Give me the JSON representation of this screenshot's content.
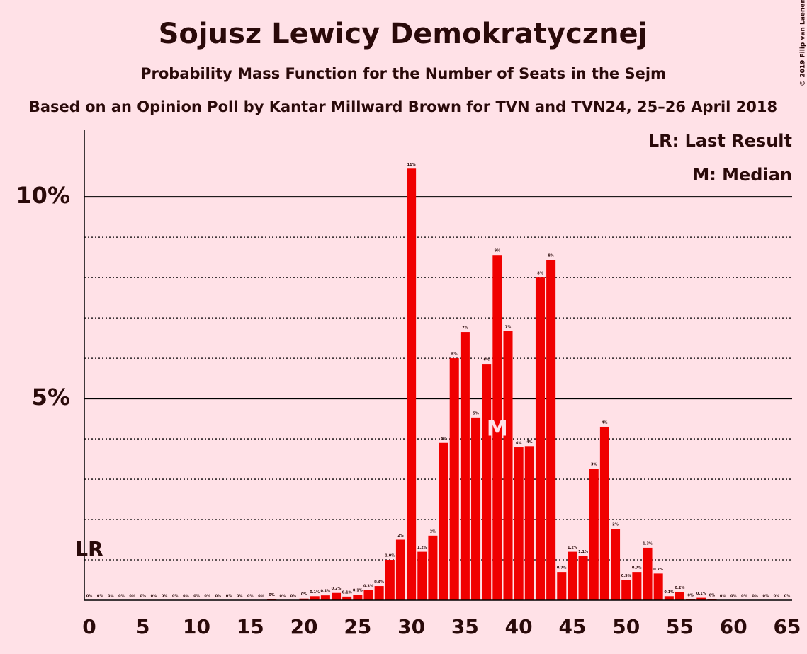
{
  "chart_data": {
    "type": "bar",
    "title": "Sojusz Lewicy Demokratycznej",
    "subtitle": "Probability Mass Function for the Number of Seats in the Sejm",
    "source": "Based on an Opinion Poll by Kantar Millward Brown for TVN and TVN24, 25–26 April 2018",
    "copyright": "© 2019 Filip van Laenen",
    "legend": [
      "LR: Last Result",
      "M: Median"
    ],
    "last_result": {
      "seat": 0,
      "label": "LR"
    },
    "median": {
      "seat": 38,
      "label": "M"
    },
    "x": [
      0,
      1,
      2,
      3,
      4,
      5,
      6,
      7,
      8,
      9,
      10,
      11,
      12,
      13,
      14,
      15,
      16,
      17,
      18,
      19,
      20,
      21,
      22,
      23,
      24,
      25,
      26,
      27,
      28,
      29,
      30,
      31,
      32,
      33,
      34,
      35,
      36,
      37,
      38,
      39,
      40,
      41,
      42,
      43,
      44,
      45,
      46,
      47,
      48,
      49,
      50,
      51,
      52,
      53,
      54,
      55,
      56,
      57,
      58,
      59,
      60,
      61,
      62,
      63,
      64,
      65
    ],
    "values": [
      0,
      0,
      0,
      0,
      0,
      0,
      0,
      0,
      0,
      0,
      0,
      0,
      0,
      0,
      0,
      0,
      0,
      0.03,
      0,
      0,
      0.04,
      0.1,
      0.12,
      0.18,
      0.09,
      0.14,
      0.25,
      0.35,
      1.0,
      1.5,
      10.7,
      1.2,
      1.6,
      3.9,
      6.0,
      6.65,
      4.53,
      5.86,
      8.56,
      6.67,
      3.79,
      3.82,
      8.0,
      8.44,
      0.7,
      1.2,
      1.1,
      3.26,
      4.3,
      1.77,
      0.5,
      0.7,
      1.3,
      0.66,
      0.1,
      0.2,
      0.02,
      0.06,
      0.02,
      0,
      0,
      0,
      0,
      0,
      0,
      0
    ],
    "value_labels": [
      "0%",
      "0%",
      "0%",
      "0%",
      "0%",
      "0%",
      "0%",
      "0%",
      "0%",
      "0%",
      "0%",
      "0%",
      "0%",
      "0%",
      "0%",
      "0%",
      "0%",
      "0%",
      "0%",
      "0%",
      "0%",
      "0.1%",
      "0.1%",
      "0.2%",
      "0.1%",
      "0.1%",
      "0.3%",
      "0.4%",
      "1.0%",
      "2%",
      "11%",
      "1.2%",
      "2%",
      "4%",
      "6%",
      "7%",
      "5%",
      "6%",
      "9%",
      "7%",
      "4%",
      "4%",
      "8%",
      "8%",
      "0.7%",
      "1.2%",
      "1.1%",
      "3%",
      "4%",
      "2%",
      "0.5%",
      "0.7%",
      "1.3%",
      "0.7%",
      "0.1%",
      "0.2%",
      "0%",
      "0.1%",
      "0%",
      "0%",
      "0%",
      "0%",
      "0%",
      "0%",
      "0%",
      "0%"
    ],
    "color": "#f00000",
    "xlim": [
      -0.46,
      65.46
    ],
    "xticks": [
      0,
      5,
      10,
      15,
      20,
      25,
      30,
      35,
      40,
      45,
      50,
      55,
      60,
      65
    ],
    "ylim": [
      0,
      11.67
    ],
    "yticks": [
      {
        "value": 5,
        "label": "5%"
      },
      {
        "value": 10,
        "label": "10%"
      }
    ],
    "minor_yticks": [
      1,
      2,
      3,
      4,
      6,
      7,
      8,
      9
    ],
    "grid": true
  }
}
